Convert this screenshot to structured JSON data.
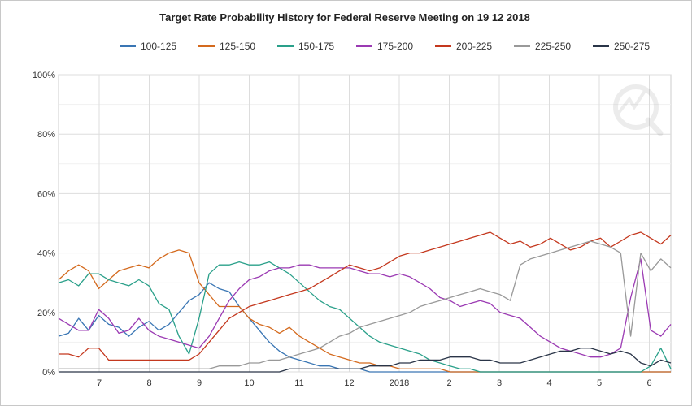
{
  "chart_data": {
    "type": "line",
    "title": "Target Rate Probability History for Federal Reserve Meeting on 19 12 2018",
    "x_tick_labels": [
      "7",
      "8",
      "9",
      "10",
      "11",
      "12",
      "2018",
      "2",
      "3",
      "4",
      "5",
      "6"
    ],
    "y_tick_labels": [
      "0%",
      "20%",
      "40%",
      "60%",
      "80%",
      "100%"
    ],
    "ylim": [
      0,
      100
    ],
    "grid": true,
    "legend_position": "top",
    "series": [
      {
        "name": "100-125",
        "color": "#3a76b4",
        "values": [
          12,
          13,
          18,
          14,
          19,
          16,
          15,
          12,
          15,
          17,
          14,
          16,
          20,
          24,
          26,
          30,
          28,
          27,
          22,
          18,
          14,
          10,
          7,
          5,
          4,
          3,
          2,
          2,
          1,
          1,
          1,
          0,
          0,
          0,
          0,
          0,
          0,
          0,
          0,
          0,
          0,
          0,
          0,
          0,
          0,
          0,
          0,
          0,
          0,
          0,
          0,
          0,
          0,
          0,
          0,
          0,
          0,
          0,
          0,
          0,
          0,
          0
        ]
      },
      {
        "name": "125-150",
        "color": "#d46a1e",
        "values": [
          31,
          34,
          36,
          34,
          28,
          31,
          34,
          35,
          36,
          35,
          38,
          40,
          41,
          40,
          30,
          26,
          22,
          22,
          22,
          18,
          16,
          15,
          13,
          15,
          12,
          10,
          8,
          6,
          5,
          4,
          3,
          3,
          2,
          2,
          1,
          1,
          1,
          1,
          1,
          0,
          0,
          0,
          0,
          0,
          0,
          0,
          0,
          0,
          0,
          0,
          0,
          0,
          0,
          0,
          0,
          0,
          0,
          0,
          0,
          0,
          0,
          0
        ]
      },
      {
        "name": "150-175",
        "color": "#2aa08a",
        "values": [
          30,
          31,
          29,
          33,
          33,
          31,
          30,
          29,
          31,
          29,
          23,
          21,
          12,
          6,
          18,
          33,
          36,
          36,
          37,
          36,
          36,
          37,
          35,
          33,
          30,
          27,
          24,
          22,
          21,
          18,
          15,
          12,
          10,
          9,
          8,
          7,
          6,
          4,
          3,
          2,
          1,
          1,
          0,
          0,
          0,
          0,
          0,
          0,
          0,
          0,
          0,
          0,
          0,
          0,
          0,
          0,
          0,
          0,
          0,
          2,
          8,
          1
        ]
      },
      {
        "name": "175-200",
        "color": "#9b3ab3",
        "values": [
          18,
          16,
          14,
          14,
          21,
          18,
          13,
          14,
          18,
          14,
          12,
          11,
          10,
          9,
          8,
          12,
          18,
          24,
          28,
          31,
          32,
          34,
          35,
          35,
          36,
          36,
          35,
          35,
          35,
          35,
          34,
          33,
          33,
          32,
          33,
          32,
          30,
          28,
          25,
          24,
          22,
          23,
          24,
          23,
          20,
          19,
          18,
          15,
          12,
          10,
          8,
          7,
          6,
          5,
          5,
          6,
          8,
          25,
          38,
          14,
          12,
          16
        ]
      },
      {
        "name": "200-225",
        "color": "#c4381e",
        "values": [
          6,
          6,
          5,
          8,
          8,
          4,
          4,
          4,
          4,
          4,
          4,
          4,
          4,
          4,
          6,
          10,
          14,
          18,
          20,
          22,
          23,
          24,
          25,
          26,
          27,
          28,
          30,
          32,
          34,
          36,
          35,
          34,
          35,
          37,
          39,
          40,
          40,
          41,
          42,
          43,
          44,
          45,
          46,
          47,
          45,
          43,
          44,
          42,
          43,
          45,
          43,
          41,
          42,
          44,
          45,
          42,
          44,
          46,
          47,
          45,
          43,
          46
        ]
      },
      {
        "name": "225-250",
        "color": "#999999",
        "values": [
          1,
          1,
          1,
          1,
          1,
          1,
          1,
          1,
          1,
          1,
          1,
          1,
          1,
          1,
          1,
          1,
          2,
          2,
          2,
          3,
          3,
          4,
          4,
          5,
          6,
          7,
          8,
          10,
          12,
          13,
          15,
          16,
          17,
          18,
          19,
          20,
          22,
          23,
          24,
          25,
          26,
          27,
          28,
          27,
          26,
          24,
          36,
          38,
          39,
          40,
          41,
          42,
          43,
          44,
          43,
          42,
          40,
          12,
          40,
          34,
          38,
          35
        ]
      },
      {
        "name": "250-275",
        "color": "#2a3548",
        "values": [
          0,
          0,
          0,
          0,
          0,
          0,
          0,
          0,
          0,
          0,
          0,
          0,
          0,
          0,
          0,
          0,
          0,
          0,
          0,
          0,
          0,
          0,
          0,
          1,
          1,
          1,
          1,
          1,
          1,
          1,
          1,
          2,
          2,
          2,
          3,
          3,
          4,
          4,
          4,
          5,
          5,
          5,
          4,
          4,
          3,
          3,
          3,
          4,
          5,
          6,
          7,
          7,
          8,
          8,
          7,
          6,
          7,
          6,
          3,
          2,
          4,
          3
        ]
      }
    ]
  }
}
